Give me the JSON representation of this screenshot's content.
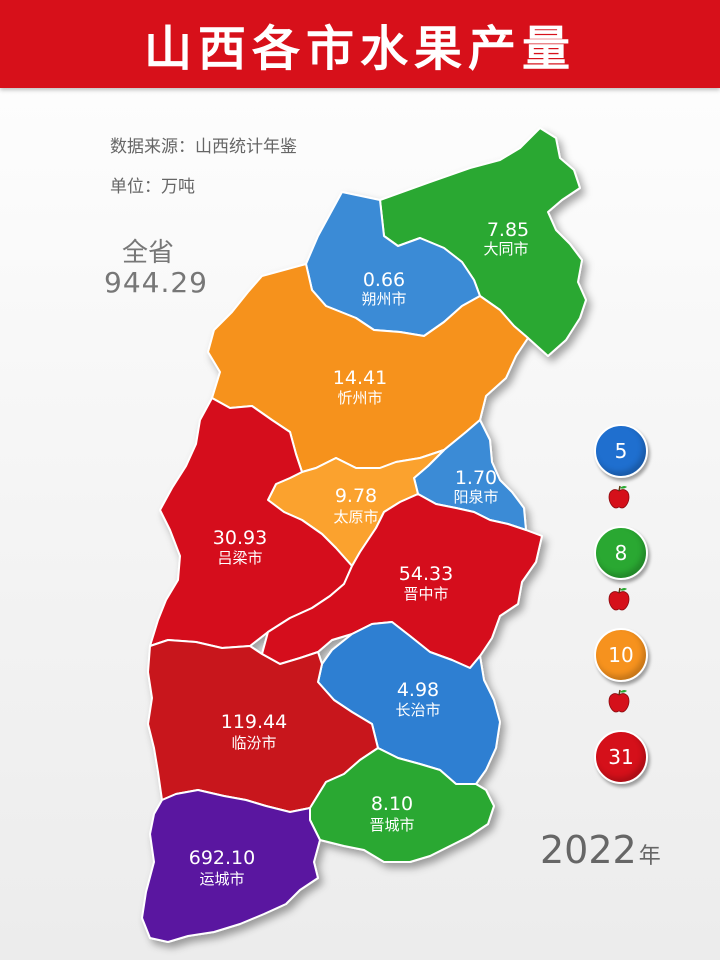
{
  "header": {
    "title": "山西各市水果产量"
  },
  "meta": {
    "source": "数据来源：山西统计年鉴",
    "unit": "单位：万吨"
  },
  "total": {
    "label": "全省",
    "value": "944.29"
  },
  "year": {
    "value": "2022",
    "suffix": "年"
  },
  "regions": [
    {
      "name": "大同市",
      "value": "7.85",
      "color": "#2ca830"
    },
    {
      "name": "朔州市",
      "value": "0.66",
      "color": "#3b8bd6"
    },
    {
      "name": "忻州市",
      "value": "14.41",
      "color": "#f6921e"
    },
    {
      "name": "阳泉市",
      "value": "1.70",
      "color": "#3b8bd6"
    },
    {
      "name": "太原市",
      "value": "9.78",
      "color": "#fba22d"
    },
    {
      "name": "吕梁市",
      "value": "30.93",
      "color": "#d5101a"
    },
    {
      "name": "晋中市",
      "value": "54.33",
      "color": "#d5101a"
    },
    {
      "name": "长治市",
      "value": "4.98",
      "color": "#2f7fd2"
    },
    {
      "name": "临汾市",
      "value": "119.44",
      "color": "#c8151c"
    },
    {
      "name": "晋城市",
      "value": "8.10",
      "color": "#2ca830"
    },
    {
      "name": "运城市",
      "value": "692.10",
      "color": "#5a15a0"
    }
  ],
  "legend": [
    {
      "value": "5",
      "color": "#1f6fcf"
    },
    {
      "value": "8",
      "color": "#2aa832"
    },
    {
      "value": "10",
      "color": "#f6921e"
    },
    {
      "value": "31",
      "color": "#d5101a"
    }
  ]
}
